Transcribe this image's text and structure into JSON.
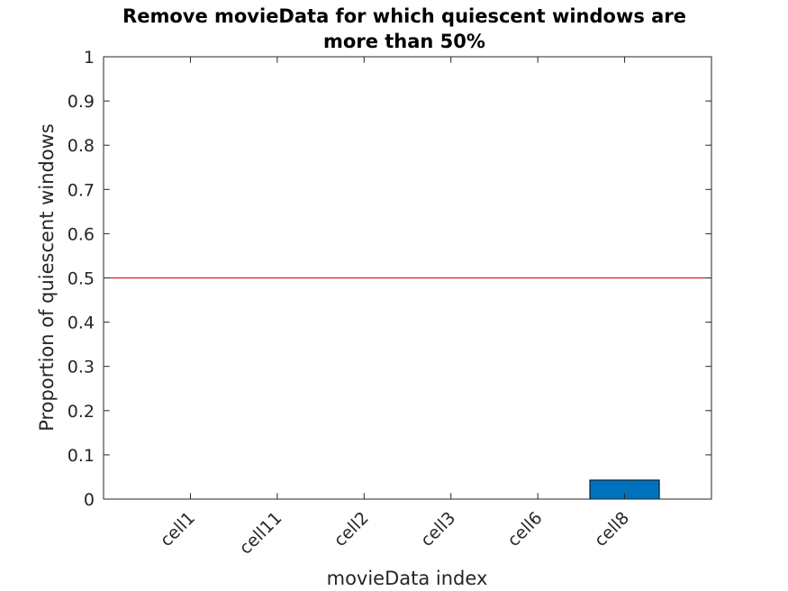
{
  "chart_data": {
    "type": "bar",
    "title": [
      "Remove movieData for which quiescent windows are",
      "more than 50%"
    ],
    "xlabel": "movieData index",
    "ylabel": "Proportion of quiescent windows",
    "categories": [
      "cell1",
      "cell11",
      "cell2",
      "cell3",
      "cell6",
      "cell8"
    ],
    "values": [
      0,
      0,
      0,
      0,
      0,
      0.043
    ],
    "ylim": [
      0,
      1
    ],
    "yticks": [
      0,
      0.1,
      0.2,
      0.3,
      0.4,
      0.5,
      0.6,
      0.7,
      0.8,
      0.9,
      1
    ],
    "ytick_labels": [
      "0",
      "0.1",
      "0.2",
      "0.3",
      "0.4",
      "0.5",
      "0.6",
      "0.7",
      "0.8",
      "0.9",
      "1"
    ],
    "threshold": 0.5,
    "grid": false,
    "colors": {
      "bar": "#0072BD",
      "threshold": "#D00000",
      "axis": "#262626"
    }
  }
}
